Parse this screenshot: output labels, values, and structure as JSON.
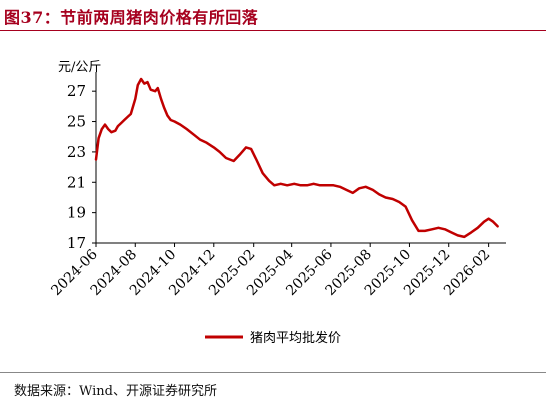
{
  "figure": {
    "title": "图37：节前两周猪肉价格有所回落",
    "source": "数据来源：Wind、开源证券研究所",
    "accent_color": "#a6001e"
  },
  "chart_data": {
    "type": "line",
    "title": "",
    "xlabel": "",
    "ylabel": "元/公斤",
    "ylim": [
      17,
      28
    ],
    "yticks": [
      17,
      19,
      21,
      23,
      25,
      27
    ],
    "xlim": [
      "2024-06-01",
      "2026-02-28"
    ],
    "xticks": [
      "2024-06",
      "2024-08",
      "2024-10",
      "2024-12",
      "2025-02",
      "2025-04",
      "2025-06",
      "2025-08",
      "2025-10",
      "2025-12",
      "2026-02"
    ],
    "grid": false,
    "legend_position": "bottom",
    "series": [
      {
        "name": "猪肉平均批发价",
        "color": "#c00000",
        "x": [
          "2024-06-01",
          "2024-06-05",
          "2024-06-10",
          "2024-06-15",
          "2024-06-20",
          "2024-06-25",
          "2024-07-01",
          "2024-07-05",
          "2024-07-10",
          "2024-07-15",
          "2024-07-20",
          "2024-07-25",
          "2024-08-01",
          "2024-08-05",
          "2024-08-10",
          "2024-08-15",
          "2024-08-20",
          "2024-08-25",
          "2024-09-01",
          "2024-09-05",
          "2024-09-10",
          "2024-09-15",
          "2024-09-20",
          "2024-09-25",
          "2024-10-01",
          "2024-10-10",
          "2024-10-20",
          "2024-11-01",
          "2024-11-10",
          "2024-11-20",
          "2024-12-01",
          "2024-12-10",
          "2024-12-20",
          "2025-01-01",
          "2025-01-10",
          "2025-01-20",
          "2025-01-28",
          "2025-02-05",
          "2025-02-15",
          "2025-02-25",
          "2025-03-05",
          "2025-03-15",
          "2025-03-25",
          "2025-04-05",
          "2025-04-15",
          "2025-04-25",
          "2025-05-05",
          "2025-05-15",
          "2025-05-25",
          "2025-06-05",
          "2025-06-15",
          "2025-06-25",
          "2025-07-05",
          "2025-07-15",
          "2025-07-25",
          "2025-08-05",
          "2025-08-15",
          "2025-08-25",
          "2025-09-05",
          "2025-09-15",
          "2025-09-25",
          "2025-10-05",
          "2025-10-15",
          "2025-10-25",
          "2025-11-05",
          "2025-11-15",
          "2025-11-25",
          "2025-12-05",
          "2025-12-15",
          "2025-12-25",
          "2026-01-05",
          "2026-01-15",
          "2026-01-25",
          "2026-02-01",
          "2026-02-08",
          "2026-02-15"
        ],
        "y": [
          22.5,
          23.9,
          24.5,
          24.8,
          24.5,
          24.3,
          24.4,
          24.7,
          24.9,
          25.1,
          25.3,
          25.5,
          26.5,
          27.4,
          27.8,
          27.5,
          27.6,
          27.1,
          27.0,
          27.2,
          26.5,
          25.9,
          25.4,
          25.1,
          25.0,
          24.8,
          24.5,
          24.1,
          23.8,
          23.6,
          23.3,
          23.0,
          22.6,
          22.4,
          22.8,
          23.3,
          23.2,
          22.5,
          21.6,
          21.1,
          20.8,
          20.9,
          20.8,
          20.9,
          20.8,
          20.8,
          20.9,
          20.8,
          20.8,
          20.8,
          20.7,
          20.5,
          20.3,
          20.6,
          20.7,
          20.5,
          20.2,
          20.0,
          19.9,
          19.7,
          19.4,
          18.5,
          17.8,
          17.8,
          17.9,
          18.0,
          17.9,
          17.7,
          17.5,
          17.4,
          17.7,
          18.0,
          18.4,
          18.6,
          18.4,
          18.1
        ]
      }
    ]
  }
}
